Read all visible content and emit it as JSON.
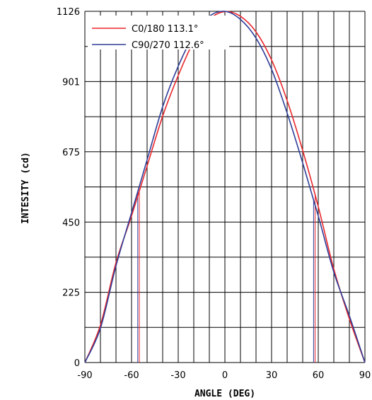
{
  "chart_data": {
    "type": "line",
    "xlabel": "ANGLE (DEG)",
    "ylabel": "INTESITY (cd)",
    "xlim": [
      -90,
      90
    ],
    "ylim": [
      0,
      1126
    ],
    "x_ticks": [
      "-90",
      "-60",
      "-30",
      "0",
      "30",
      "60",
      "90"
    ],
    "y_ticks": [
      "0",
      "225",
      "450",
      "675",
      "901",
      "1126"
    ],
    "x_tick_values": [
      -90,
      -60,
      -30,
      0,
      30,
      60,
      90
    ],
    "y_tick_values": [
      0,
      225,
      450,
      675,
      901,
      1126
    ],
    "grid": true,
    "legend_position": "top-left",
    "series": [
      {
        "name": "C0/180 113.1°",
        "color": "#e8262b",
        "half_angle_markers": [
          -55,
          58
        ],
        "x": [
          -90,
          -80,
          -70,
          -60,
          -50,
          -40,
          -30,
          -20,
          -10,
          0,
          10,
          20,
          30,
          40,
          50,
          60,
          70,
          80,
          90
        ],
        "y": [
          0,
          120,
          320,
          470,
          630,
          790,
          920,
          1030,
          1100,
          1125,
          1110,
          1060,
          970,
          840,
          680,
          500,
          300,
          140,
          0
        ]
      },
      {
        "name": "C90/270 112.6°",
        "color": "#2e3d97",
        "half_angle_markers": [
          -56,
          57
        ],
        "x": [
          -90,
          -80,
          -70,
          -60,
          -50,
          -40,
          -30,
          -20,
          -10,
          0,
          10,
          20,
          30,
          40,
          50,
          60,
          70,
          80,
          90
        ],
        "y": [
          0,
          110,
          310,
          480,
          650,
          820,
          950,
          1050,
          1110,
          1126,
          1100,
          1040,
          940,
          800,
          640,
          470,
          290,
          150,
          0
        ]
      }
    ]
  }
}
